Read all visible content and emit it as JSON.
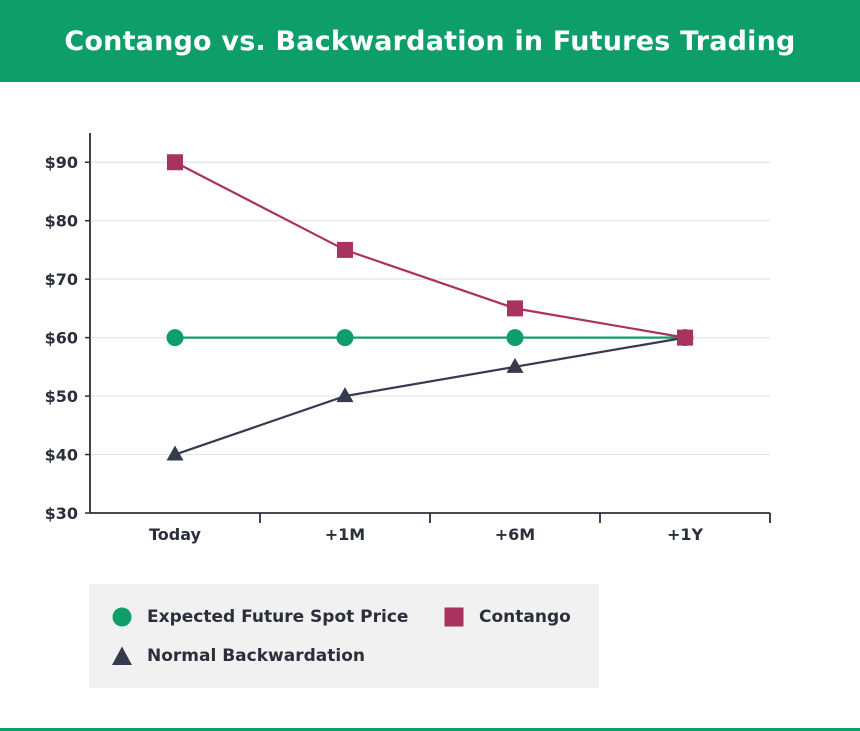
{
  "header": {
    "title": "Contango vs. Backwardation in Futures Trading"
  },
  "colors": {
    "header_bg": "#0e9e6a",
    "spot": "#0e9e6a",
    "contango": "#a8335f",
    "backwardation": "#363a4d"
  },
  "chart_data": {
    "type": "line",
    "title": "Contango vs. Backwardation in Futures Trading",
    "xlabel": "",
    "ylabel": "",
    "categories": [
      "Today",
      "+1M",
      "+6M",
      "+1Y"
    ],
    "y_ticks": [
      "$30",
      "$40",
      "$50",
      "$60",
      "$70",
      "$80",
      "$90"
    ],
    "ylim": [
      30,
      90
    ],
    "grid": "horizontal",
    "legend_position": "bottom",
    "series": [
      {
        "name": "Expected Future Spot Price",
        "values": [
          60,
          60,
          60,
          60
        ],
        "marker": "circle",
        "color": "#0e9e6a"
      },
      {
        "name": "Contango",
        "values": [
          90,
          75,
          65,
          60
        ],
        "marker": "square",
        "color": "#a8335f"
      },
      {
        "name": "Normal Backwardation",
        "values": [
          40,
          50,
          55,
          60
        ],
        "marker": "triangle",
        "color": "#363a4d"
      }
    ]
  },
  "legend": {
    "items": [
      {
        "label": "Expected Future Spot Price",
        "icon": "circle-marker-icon"
      },
      {
        "label": "Contango",
        "icon": "square-marker-icon"
      },
      {
        "label": "Normal Backwardation",
        "icon": "triangle-marker-icon"
      }
    ]
  }
}
